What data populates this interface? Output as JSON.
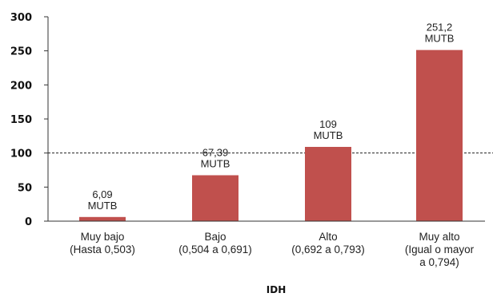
{
  "chart_data": {
    "type": "bar",
    "title": "",
    "xlabel": "IDH",
    "ylabel": "",
    "ylim": [
      0,
      300
    ],
    "yticks": [
      0,
      50,
      100,
      150,
      200,
      250,
      300
    ],
    "grid": false,
    "reference_line": {
      "value": 100,
      "style": "dashed"
    },
    "categories": [
      [
        "Muy bajo",
        "(Hasta 0,503)"
      ],
      [
        "Bajo",
        "(0,504 a 0,691)"
      ],
      [
        "Alto",
        "(0,692 a 0,793)"
      ],
      [
        "Muy alto",
        "(Igual o mayor",
        "a  0,794)"
      ]
    ],
    "values": [
      6.09,
      67.39,
      109,
      251.2
    ],
    "data_labels": [
      [
        "6,09",
        "MUTB"
      ],
      [
        "67,39",
        "MUTB"
      ],
      [
        "109",
        "MUTB"
      ],
      [
        "251,2",
        "MUTB"
      ]
    ],
    "bar_color": "#c0504d"
  }
}
